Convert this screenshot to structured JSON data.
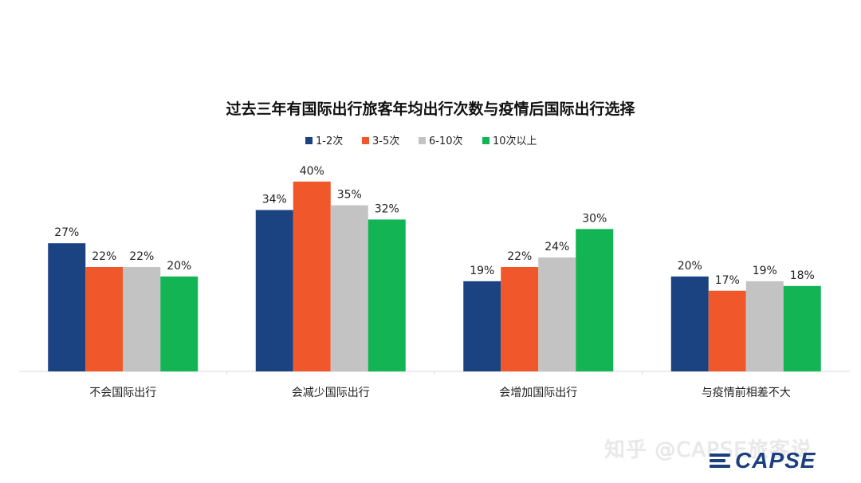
{
  "chart_data": {
    "type": "bar",
    "title": "过去三年有国际出行旅客年均出行次数与疫情后国际出行选择",
    "categories": [
      "不会国际出行",
      "会减少国际出行",
      "会增加国际出行",
      "与疫情前相差不大"
    ],
    "series": [
      {
        "name": "1-2次",
        "color": "#1b4281",
        "values": [
          27,
          34,
          19,
          20
        ]
      },
      {
        "name": "3-5次",
        "color": "#f0572a",
        "values": [
          22,
          40,
          22,
          17
        ]
      },
      {
        "name": "6-10次",
        "color": "#c3c3c3",
        "values": [
          22,
          35,
          24,
          19
        ]
      },
      {
        "name": "10次以上",
        "color": "#12b454",
        "values": [
          20,
          32,
          30,
          18
        ]
      }
    ],
    "value_suffix": "%",
    "ylim": [
      0,
      45
    ],
    "legend_position": "top-center",
    "grid": false
  },
  "watermark": {
    "text": "知乎 @CAPSE旅客说"
  },
  "logo": {
    "text": "CAPSE"
  }
}
